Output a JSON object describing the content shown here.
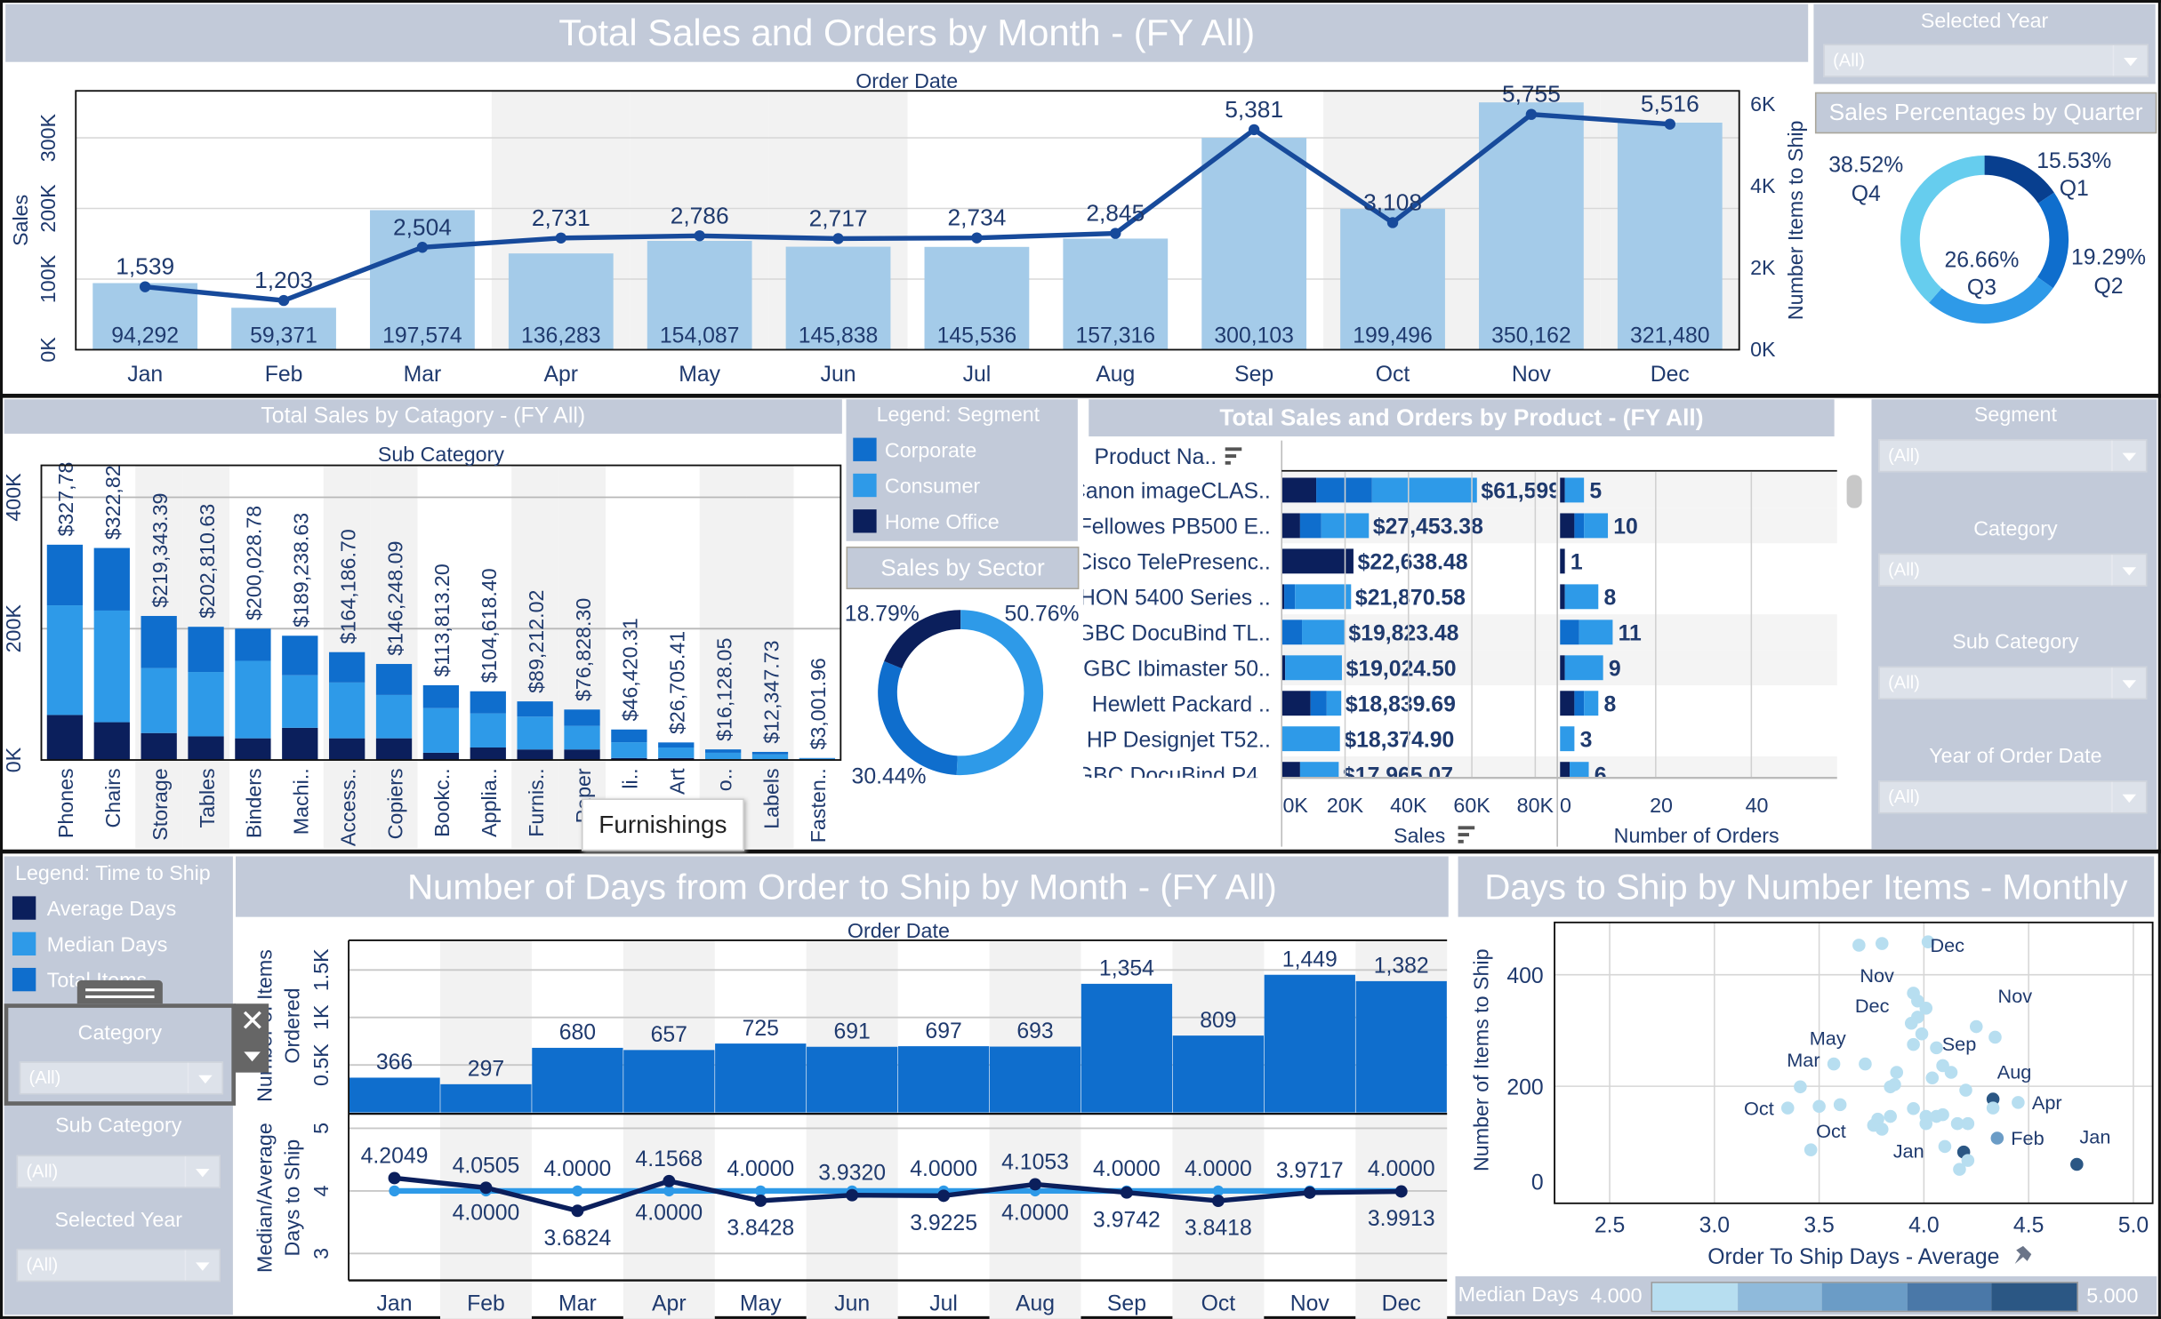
{
  "colors": {
    "header_bg": "#c2cad9",
    "navy": "#0b1f5c",
    "corporate": "#0f6ecd",
    "consumer": "#2e9ae8",
    "light_bar": "#a4cbe9",
    "line": "#174a9b"
  },
  "top_chart": {
    "title": "Total Sales and Orders by Month - (FY All)",
    "col_header": "Order Date",
    "ylabel_left": "Sales",
    "ylabel_right": "Number Items to Ship",
    "left_ticks": [
      "0K",
      "100K",
      "200K",
      "300K"
    ],
    "right_ticks": [
      "0K",
      "2K",
      "4K",
      "6K"
    ],
    "chart_data": {
      "type": "bar+line",
      "categories": [
        "Jan",
        "Feb",
        "Mar",
        "Apr",
        "May",
        "Jun",
        "Jul",
        "Aug",
        "Sep",
        "Oct",
        "Nov",
        "Dec"
      ],
      "sales": [
        94292,
        59371,
        197574,
        136283,
        154087,
        145838,
        145536,
        157316,
        300103,
        199496,
        350162,
        321480
      ],
      "sales_labels": [
        "94,292",
        "59,371",
        "197,574",
        "136,283",
        "154,087",
        "145,838",
        "145,536",
        "157,316",
        "300,103",
        "199,496",
        "350,162",
        "321,480"
      ],
      "items": [
        1539,
        1203,
        2504,
        2731,
        2786,
        2717,
        2734,
        2845,
        5381,
        3108,
        5755,
        5516
      ],
      "items_labels": [
        "1,539",
        "1,203",
        "2,504",
        "2,731",
        "2,786",
        "2,717",
        "2,734",
        "2,845",
        "5,381",
        "3,108",
        "5,755",
        "5,516"
      ]
    }
  },
  "selected_year_filter": {
    "label": "Selected Year",
    "value": "(All)"
  },
  "quarter": {
    "title": "Sales Percentages by Quarter",
    "chart_data": {
      "type": "pie",
      "slices": [
        {
          "name": "Q1",
          "value": 15.53,
          "label": "15.53%",
          "color": "#083f8f"
        },
        {
          "name": "Q2",
          "value": 19.29,
          "label": "19.29%",
          "color": "#0f6ecd"
        },
        {
          "name": "Q3",
          "value": 26.66,
          "label": "26.66%",
          "color": "#2e9ae8"
        },
        {
          "name": "Q4",
          "value": 38.52,
          "label": "38.52%",
          "color": "#66cdee"
        }
      ]
    }
  },
  "category_chart": {
    "title": "Total Sales by Catagory - (FY All)",
    "col_header": "Sub Category",
    "y_ticks": [
      "0K",
      "200K",
      "400K"
    ],
    "chart_data": {
      "type": "stacked-bar",
      "series": [
        "Home Office",
        "Consumer",
        "Corporate"
      ],
      "categories": [
        "Phones",
        "Chairs",
        "Storage",
        "Tables",
        "Binders",
        "Machi..",
        "Access..",
        "Copiers",
        "Bookc..",
        "Applia..",
        "Furnis..",
        "Paper",
        "li..",
        "Art",
        "o..",
        "Labels",
        "Fasten.."
      ],
      "labels": [
        "$327,78",
        "$322,82",
        "$219,343.39",
        "$202,810.63",
        "$200,028.78",
        "$189,238.63",
        "$164,186.70",
        "$146,248.09",
        "$113,813.20",
        "$104,618.40",
        "$89,212.02",
        "$76,828.30",
        "$46,420.31",
        "$26,705.41",
        "$16,128.05",
        "$12,347.73",
        "$3,001.96"
      ],
      "values_k": [
        [
          68.5,
          167,
          92.3
        ],
        [
          57.5,
          170,
          95.3
        ],
        [
          41,
          99,
          79.3
        ],
        [
          36,
          98,
          68.8
        ],
        [
          33,
          118,
          49
        ],
        [
          49,
          80,
          60.2
        ],
        [
          33,
          85,
          46.2
        ],
        [
          33,
          66,
          47.2
        ],
        [
          11,
          68,
          34.8
        ],
        [
          19,
          52,
          33.6
        ],
        [
          16,
          50,
          23.2
        ],
        [
          16,
          36,
          24.8
        ],
        [
          3,
          24,
          19.4
        ],
        [
          3,
          16,
          7.7
        ],
        [
          1,
          10,
          5.1
        ],
        [
          0.5,
          8,
          3.8
        ],
        [
          0.3,
          2,
          0.7
        ]
      ]
    }
  },
  "tooltip": {
    "text": "Furnishings"
  },
  "segment_legend": {
    "title": "Legend: Segment",
    "items": [
      {
        "label": "Corporate",
        "color": "#0f6ecd"
      },
      {
        "label": "Consumer",
        "color": "#2e9ae8"
      },
      {
        "label": "Home Office",
        "color": "#0b1f5c"
      }
    ]
  },
  "sector": {
    "title": "Sales by Sector",
    "chart_data": {
      "type": "pie",
      "slices": [
        {
          "name": "Consumer",
          "value": 50.76,
          "label": "50.76%",
          "color": "#2e9ae8"
        },
        {
          "name": "Corporate",
          "value": 30.44,
          "label": "30.44%",
          "color": "#0f6ecd"
        },
        {
          "name": "Home Office",
          "value": 18.79,
          "label": "18.79%",
          "color": "#0b1f5c"
        }
      ]
    }
  },
  "product_chart": {
    "title": "Total Sales and Orders by Product - (FY All)",
    "row_header": "Product Na..",
    "sales_axis": "Sales",
    "orders_axis": "Number of Orders",
    "sales_ticks": [
      "0K",
      "20K",
      "40K",
      "60K",
      "80K"
    ],
    "orders_ticks": [
      "0",
      "20",
      "40"
    ],
    "chart_data": {
      "type": "stacked-barh",
      "series": [
        "Home Office",
        "Corporate",
        "Consumer"
      ],
      "rows": [
        {
          "name": "Canon imageCLAS..",
          "sales_label": "$61,599",
          "sales_k": [
            10.9,
            17.6,
            33.1
          ],
          "orders": [
            1,
            0,
            4
          ],
          "orders_label": "5"
        },
        {
          "name": "Fellowes PB500 E..",
          "sales_label": "$27,453.38",
          "sales_k": [
            5.8,
            6.7,
            15
          ],
          "orders": [
            3,
            2,
            5
          ],
          "orders_label": "10"
        },
        {
          "name": "Cisco TelePresenc..",
          "sales_label": "$22,638.48",
          "sales_k": [
            22.64,
            0,
            0
          ],
          "orders": [
            1,
            0,
            0
          ],
          "orders_label": "1"
        },
        {
          "name": "HON 5400 Series ..",
          "sales_label": "$21,870.58",
          "sales_k": [
            0.8,
            3.4,
            17.7
          ],
          "orders": [
            1,
            0,
            7
          ],
          "orders_label": "8"
        },
        {
          "name": "GBC DocuBind TL..",
          "sales_label": "$19,823.48",
          "sales_k": [
            0,
            6.4,
            13.4
          ],
          "orders": [
            0,
            4,
            7
          ],
          "orders_label": "11"
        },
        {
          "name": "GBC Ibimaster 50..",
          "sales_label": "$19,024.50",
          "sales_k": [
            1.1,
            0,
            17.9
          ],
          "orders": [
            1,
            0,
            8
          ],
          "orders_label": "9"
        },
        {
          "name": "Hewlett Packard ..",
          "sales_label": "$18,839.69",
          "sales_k": [
            9.1,
            5.1,
            4.6
          ],
          "orders": [
            3,
            2,
            3
          ],
          "orders_label": "8"
        },
        {
          "name": "HP Designjet T52..",
          "sales_label": "$18,374.90",
          "sales_k": [
            0,
            0,
            18.37
          ],
          "orders": [
            0,
            0,
            3
          ],
          "orders_label": "3"
        },
        {
          "name": "GBC DocuBind P4..",
          "sales_label": "$17,965.07",
          "sales_k": [
            5.8,
            0,
            12.2
          ],
          "orders": [
            2,
            0,
            4
          ],
          "orders_label": "6"
        }
      ]
    }
  },
  "right_filters": [
    {
      "label": "Segment",
      "value": "(All)"
    },
    {
      "label": "Category",
      "value": "(All)"
    },
    {
      "label": "Sub Category",
      "value": "(All)"
    },
    {
      "label": "Year of Order Date",
      "value": "(All)"
    }
  ],
  "ship_legend": {
    "title": "Legend: Time to Ship",
    "items": [
      {
        "label": "Average Days",
        "color": "#0b1f5c"
      },
      {
        "label": "Median Days",
        "color": "#2e9ae8"
      },
      {
        "label": "Total Items",
        "color": "#0f6ecd"
      }
    ]
  },
  "left_filters": [
    {
      "label": "Category",
      "value": "(All)"
    },
    {
      "label": "Sub Category",
      "value": "(All)"
    },
    {
      "label": "Selected Year",
      "value": "(All)"
    }
  ],
  "days_chart": {
    "title": "Number of Days from Order to Ship by Month - (FY All)",
    "col_header": "Order Date",
    "ylabel_top": [
      "Number of Items",
      "Ordered"
    ],
    "ylabel_bottom": [
      "Median/Average",
      "Days to Ship"
    ],
    "top_ticks": [
      "0.5K",
      "1K",
      "1.5K"
    ],
    "bottom_ticks": [
      "3",
      "4",
      "5"
    ],
    "chart_data": {
      "type": "bar+line",
      "categories": [
        "Jan",
        "Feb",
        "Mar",
        "Apr",
        "May",
        "Jun",
        "Jul",
        "Aug",
        "Sep",
        "Oct",
        "Nov",
        "Dec"
      ],
      "items": [
        366,
        297,
        680,
        657,
        725,
        691,
        697,
        693,
        1354,
        809,
        1449,
        1382
      ],
      "items_labels": [
        "366",
        "297",
        "680",
        "657",
        "725",
        "691",
        "697",
        "693",
        "1,354",
        "809",
        "1,449",
        "1,382"
      ],
      "average": [
        4.2049,
        4.0505,
        3.6824,
        4.1568,
        3.8428,
        3.932,
        3.9225,
        4.1053,
        3.9742,
        3.8418,
        3.9717,
        3.9913
      ],
      "average_labels": [
        "4.2049",
        "4.0505",
        "3.6824",
        "4.1568",
        "3.8428",
        "3.9320",
        "3.9225",
        "4.1053",
        "3.9742",
        "3.8418",
        "3.9717",
        "3.9913"
      ],
      "median": [
        4,
        4,
        4,
        4,
        4,
        4,
        4,
        4,
        4,
        4,
        4,
        4
      ],
      "median_labels": [
        "",
        "4.0000",
        "4.0000",
        "4.0000",
        "4.0000",
        "",
        "4.0000",
        "4.0000",
        "4.0000",
        "4.0000",
        "",
        "4.0000"
      ]
    }
  },
  "scatter": {
    "title": "Days to Ship by Number Items - Monthly",
    "xlabel": "Order To Ship Days - Average",
    "ylabel": "Number of Items to Ship",
    "x_ticks": [
      "2.5",
      "3.0",
      "3.5",
      "4.0",
      "4.5",
      "5.0"
    ],
    "y_ticks": [
      "0",
      "200",
      "400"
    ],
    "legend": {
      "label": "Median Days",
      "min": "4.000",
      "max": "5.000",
      "colors": [
        "#b7def0",
        "#8fbadb",
        "#6b9cc6",
        "#4a78a8",
        "#2b5784"
      ]
    },
    "chart_data": {
      "type": "scatter",
      "xlim": [
        2.26,
        5.05
      ],
      "ylim": [
        0,
        494
      ],
      "points": [
        {
          "x": 3.69,
          "y": 453,
          "m": 0
        },
        {
          "x": 3.8,
          "y": 456,
          "m": 0
        },
        {
          "x": 4.02,
          "y": 459,
          "m": 0
        },
        {
          "x": 3.95,
          "y": 367,
          "m": 0,
          "label": "Nov"
        },
        {
          "x": 3.97,
          "y": 353,
          "m": 0
        },
        {
          "x": 4.01,
          "y": 340,
          "m": 0
        },
        {
          "x": 3.97,
          "y": 324,
          "m": 0
        },
        {
          "x": 3.94,
          "y": 313,
          "m": 0,
          "label": "Dec"
        },
        {
          "x": 4.25,
          "y": 307,
          "m": 0
        },
        {
          "x": 4.34,
          "y": 288,
          "m": 0,
          "label": "Nov"
        },
        {
          "x": 3.99,
          "y": 294,
          "m": 0
        },
        {
          "x": 3.95,
          "y": 275,
          "m": 0
        },
        {
          "x": 4.06,
          "y": 269,
          "m": 0,
          "label": "Sep"
        },
        {
          "x": 3.57,
          "y": 240,
          "m": 0,
          "label": "Mar"
        },
        {
          "x": 3.72,
          "y": 240,
          "m": 0,
          "label": "May"
        },
        {
          "x": 4.09,
          "y": 237,
          "m": 0
        },
        {
          "x": 4.13,
          "y": 225,
          "m": 0
        },
        {
          "x": 3.87,
          "y": 225,
          "m": 0
        },
        {
          "x": 4.04,
          "y": 215,
          "m": 0
        },
        {
          "x": 3.86,
          "y": 203,
          "m": 0
        },
        {
          "x": 3.84,
          "y": 199,
          "m": 0
        },
        {
          "x": 3.41,
          "y": 199,
          "m": 0
        },
        {
          "x": 4.2,
          "y": 193,
          "m": 0
        },
        {
          "x": 4.33,
          "y": 177,
          "m": 4,
          "label": "Aug"
        },
        {
          "x": 4.45,
          "y": 171,
          "m": 0,
          "label": "Apr"
        },
        {
          "x": 4.33,
          "y": 161,
          "m": 0
        },
        {
          "x": 3.35,
          "y": 161,
          "m": 0,
          "label": "Oct"
        },
        {
          "x": 3.5,
          "y": 164,
          "m": 0
        },
        {
          "x": 3.6,
          "y": 167,
          "m": 0
        },
        {
          "x": 3.95,
          "y": 160,
          "m": 0
        },
        {
          "x": 3.84,
          "y": 146,
          "m": 0
        },
        {
          "x": 3.78,
          "y": 141,
          "m": 0
        },
        {
          "x": 4.01,
          "y": 146,
          "m": 0
        },
        {
          "x": 4.06,
          "y": 146,
          "m": 0
        },
        {
          "x": 4.09,
          "y": 149,
          "m": 0
        },
        {
          "x": 4.16,
          "y": 133,
          "m": 0
        },
        {
          "x": 4.21,
          "y": 133,
          "m": 0
        },
        {
          "x": 4.01,
          "y": 133,
          "m": 0
        },
        {
          "x": 3.76,
          "y": 130,
          "m": 0,
          "label": "Oct"
        },
        {
          "x": 3.8,
          "y": 123,
          "m": 0
        },
        {
          "x": 4.35,
          "y": 107,
          "m": 2,
          "label": "Feb"
        },
        {
          "x": 4.1,
          "y": 92,
          "m": 0,
          "label": "Jan"
        },
        {
          "x": 4.19,
          "y": 82,
          "m": 4
        },
        {
          "x": 3.46,
          "y": 86,
          "m": 0
        },
        {
          "x": 4.73,
          "y": 60,
          "m": 4,
          "label": "Jan"
        },
        {
          "x": 4.21,
          "y": 67,
          "m": 0
        },
        {
          "x": 4.17,
          "y": 51,
          "m": 0
        },
        {
          "x": 4.03,
          "y": 441,
          "m": 0,
          "label": "Dec",
          "labelOnly": true
        }
      ]
    }
  }
}
